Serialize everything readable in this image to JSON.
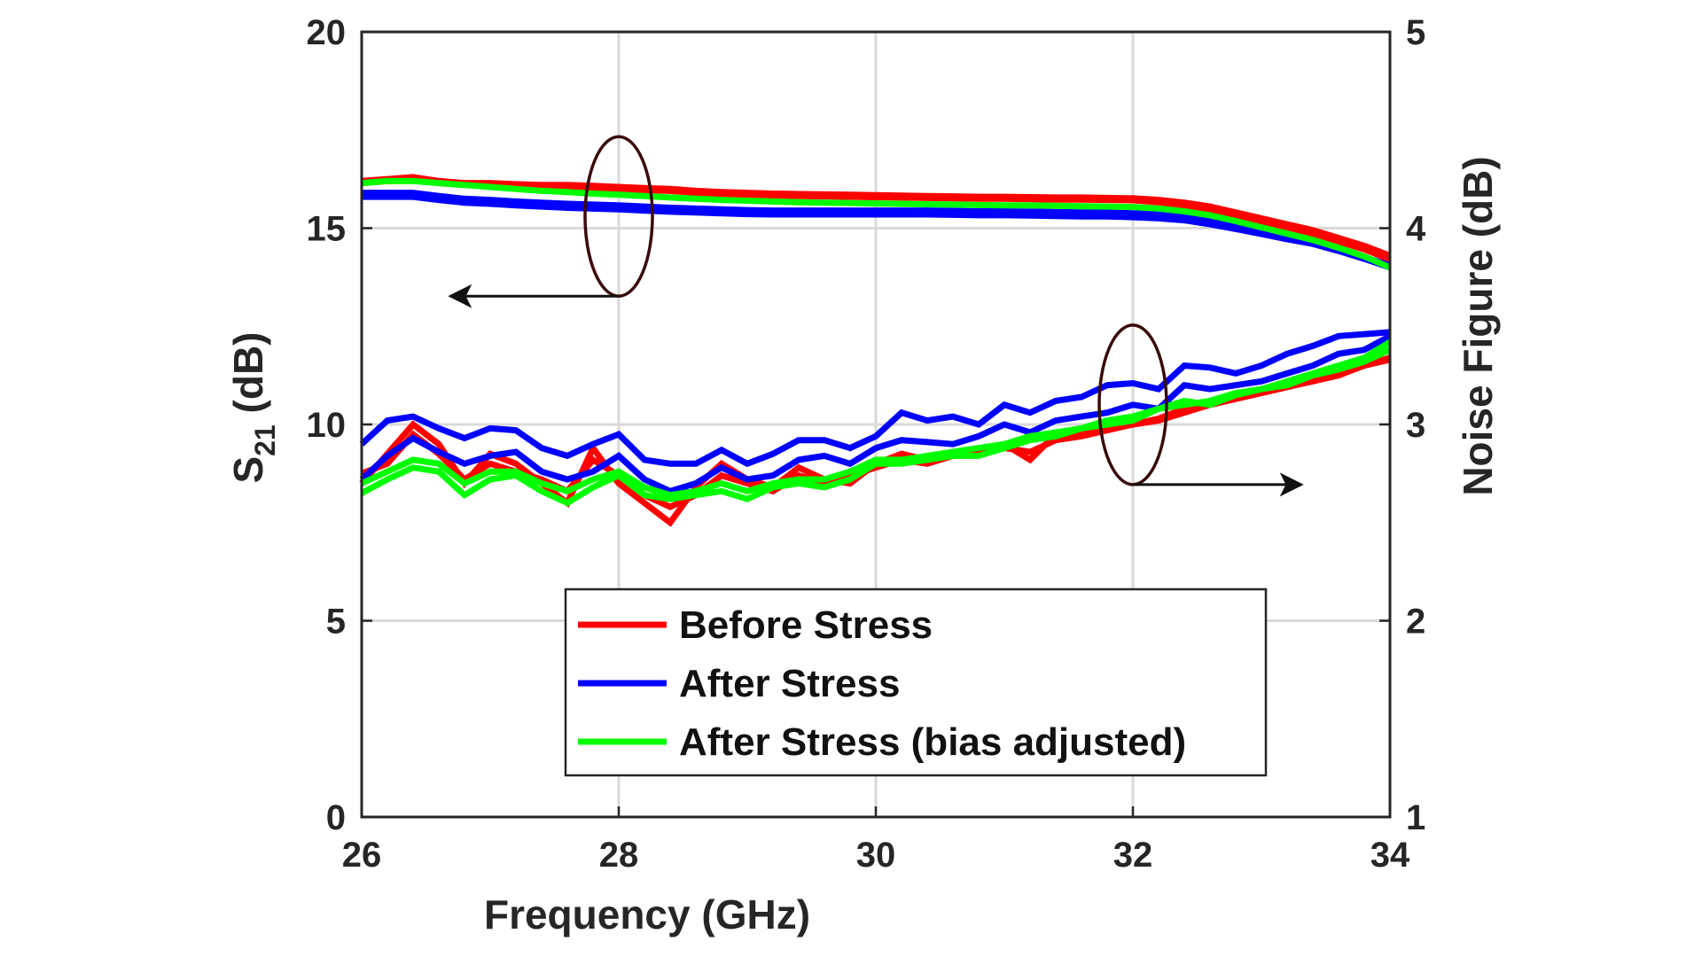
{
  "chart_data": {
    "type": "line",
    "title": "",
    "xlabel": "Frequency (GHz)",
    "ylabel_left": {
      "main": "S",
      "sub": "21",
      "unit": " (dB)"
    },
    "ylabel_right": "Noise Figure (dB)",
    "xlim": [
      26,
      34
    ],
    "ylim_left": [
      0,
      20
    ],
    "ylim_right": [
      1,
      5
    ],
    "xticks": [
      "26",
      "28",
      "30",
      "32",
      "34"
    ],
    "yticks_left": [
      "0",
      "5",
      "10",
      "15",
      "20"
    ],
    "yticks_right": [
      "1",
      "2",
      "3",
      "4",
      "5"
    ],
    "grid": true,
    "legend_position": "bottom-center",
    "colors": {
      "before": "#ff0000",
      "after": "#0000ff",
      "adjusted": "#00ff00",
      "axis": "#262626",
      "grid": "#d9d9d9",
      "ellipse": "#3a0a0a"
    },
    "x": [
      26.0,
      26.2,
      26.4,
      26.6,
      26.8,
      27.0,
      27.2,
      27.4,
      27.6,
      27.8,
      28.0,
      28.2,
      28.4,
      28.6,
      28.8,
      29.0,
      29.2,
      29.4,
      29.6,
      29.8,
      30.0,
      30.2,
      30.4,
      30.6,
      30.8,
      31.0,
      31.2,
      31.4,
      31.6,
      31.8,
      32.0,
      32.2,
      32.4,
      32.6,
      32.8,
      33.0,
      33.2,
      33.4,
      33.6,
      33.8,
      34.0
    ],
    "series": [
      {
        "name": "Before Stress",
        "axis": "left",
        "group": "S21",
        "color": "#ff0000",
        "values": [
          16.2,
          16.25,
          16.3,
          16.2,
          16.15,
          16.15,
          16.12,
          16.1,
          16.1,
          16.08,
          16.05,
          16.02,
          16.0,
          15.95,
          15.92,
          15.9,
          15.88,
          15.87,
          15.86,
          15.85,
          15.84,
          15.83,
          15.82,
          15.81,
          15.8,
          15.8,
          15.79,
          15.78,
          15.78,
          15.77,
          15.76,
          15.72,
          15.65,
          15.55,
          15.4,
          15.25,
          15.1,
          14.95,
          14.75,
          14.55,
          14.3
        ]
      },
      {
        "name": "Before Stress",
        "axis": "left",
        "group": "S21",
        "color": "#ff0000",
        "values": [
          16.15,
          16.2,
          16.22,
          16.15,
          16.1,
          16.1,
          16.07,
          16.05,
          16.05,
          16.02,
          16.0,
          15.97,
          15.95,
          15.9,
          15.87,
          15.85,
          15.83,
          15.82,
          15.81,
          15.8,
          15.79,
          15.78,
          15.77,
          15.76,
          15.75,
          15.75,
          15.74,
          15.73,
          15.73,
          15.72,
          15.71,
          15.66,
          15.58,
          15.48,
          15.33,
          15.17,
          15.02,
          14.86,
          14.66,
          14.46,
          14.2
        ]
      },
      {
        "name": "After Stress",
        "axis": "left",
        "group": "S21",
        "color": "#0000ff",
        "values": [
          15.8,
          15.8,
          15.8,
          15.72,
          15.65,
          15.62,
          15.58,
          15.55,
          15.52,
          15.5,
          15.48,
          15.45,
          15.42,
          15.4,
          15.38,
          15.36,
          15.35,
          15.35,
          15.35,
          15.35,
          15.35,
          15.35,
          15.35,
          15.34,
          15.33,
          15.33,
          15.32,
          15.31,
          15.3,
          15.3,
          15.28,
          15.25,
          15.2,
          15.1,
          14.98,
          14.85,
          14.72,
          14.6,
          14.42,
          14.22,
          14.0
        ]
      },
      {
        "name": "After Stress",
        "axis": "left",
        "group": "S21",
        "color": "#0000ff",
        "values": [
          15.9,
          15.9,
          15.9,
          15.82,
          15.75,
          15.72,
          15.68,
          15.65,
          15.62,
          15.6,
          15.58,
          15.55,
          15.52,
          15.5,
          15.48,
          15.46,
          15.45,
          15.45,
          15.45,
          15.45,
          15.45,
          15.45,
          15.45,
          15.44,
          15.43,
          15.43,
          15.42,
          15.41,
          15.4,
          15.4,
          15.38,
          15.35,
          15.28,
          15.17,
          15.04,
          14.9,
          14.77,
          14.64,
          14.46,
          14.26,
          14.05
        ]
      },
      {
        "name": "After Stress (bias adjusted)",
        "axis": "left",
        "group": "S21",
        "color": "#00ff00",
        "values": [
          16.15,
          16.2,
          16.2,
          16.15,
          16.1,
          16.05,
          16.0,
          15.95,
          15.92,
          15.88,
          15.85,
          15.82,
          15.78,
          15.75,
          15.72,
          15.7,
          15.68,
          15.66,
          15.65,
          15.64,
          15.63,
          15.62,
          15.61,
          15.6,
          15.59,
          15.58,
          15.58,
          15.57,
          15.56,
          15.55,
          15.54,
          15.5,
          15.43,
          15.33,
          15.18,
          15.02,
          14.86,
          14.7,
          14.5,
          14.28,
          14.0
        ]
      },
      {
        "name": "Before Stress",
        "axis": "right",
        "group": "NF",
        "color": "#ff0000",
        "values": [
          2.7,
          2.85,
          3.0,
          2.9,
          2.7,
          2.85,
          2.8,
          2.7,
          2.6,
          2.88,
          2.7,
          2.6,
          2.5,
          2.68,
          2.8,
          2.72,
          2.68,
          2.78,
          2.72,
          2.7,
          2.8,
          2.85,
          2.82,
          2.85,
          2.85,
          2.9,
          2.82,
          2.95,
          2.95,
          2.98,
          3.0,
          3.03,
          3.08,
          3.12,
          3.15,
          3.18,
          3.2,
          3.22,
          3.25,
          3.3,
          3.33
        ]
      },
      {
        "name": "Before Stress",
        "axis": "right",
        "group": "NF",
        "color": "#ff0000",
        "values": [
          2.75,
          2.8,
          2.95,
          2.85,
          2.72,
          2.8,
          2.76,
          2.72,
          2.66,
          2.82,
          2.74,
          2.64,
          2.58,
          2.64,
          2.74,
          2.7,
          2.66,
          2.74,
          2.7,
          2.74,
          2.78,
          2.82,
          2.8,
          2.84,
          2.86,
          2.88,
          2.86,
          2.92,
          2.94,
          2.97,
          3.0,
          3.02,
          3.06,
          3.1,
          3.13,
          3.16,
          3.19,
          3.22,
          3.26,
          3.3,
          3.34
        ]
      },
      {
        "name": "After Stress",
        "axis": "right",
        "group": "NF",
        "color": "#0000ff",
        "values": [
          2.9,
          3.02,
          3.04,
          2.98,
          2.93,
          2.98,
          2.97,
          2.88,
          2.84,
          2.9,
          2.95,
          2.82,
          2.8,
          2.8,
          2.87,
          2.8,
          2.85,
          2.92,
          2.92,
          2.88,
          2.94,
          3.06,
          3.02,
          3.04,
          3.0,
          3.1,
          3.06,
          3.12,
          3.14,
          3.2,
          3.21,
          3.18,
          3.3,
          3.29,
          3.26,
          3.3,
          3.36,
          3.4,
          3.45,
          3.46,
          3.47
        ]
      },
      {
        "name": "After Stress",
        "axis": "right",
        "group": "NF",
        "color": "#0000ff",
        "values": [
          2.72,
          2.84,
          2.93,
          2.86,
          2.8,
          2.84,
          2.86,
          2.76,
          2.72,
          2.76,
          2.84,
          2.72,
          2.66,
          2.7,
          2.78,
          2.72,
          2.74,
          2.82,
          2.84,
          2.8,
          2.88,
          2.92,
          2.91,
          2.9,
          2.94,
          3.0,
          2.96,
          3.02,
          3.04,
          3.06,
          3.1,
          3.08,
          3.2,
          3.18,
          3.2,
          3.22,
          3.26,
          3.3,
          3.36,
          3.38,
          3.45
        ]
      },
      {
        "name": "After Stress (bias adjusted)",
        "axis": "right",
        "group": "NF",
        "color": "#00ff00",
        "values": [
          2.65,
          2.72,
          2.78,
          2.76,
          2.64,
          2.72,
          2.74,
          2.66,
          2.6,
          2.68,
          2.74,
          2.64,
          2.62,
          2.64,
          2.66,
          2.62,
          2.68,
          2.7,
          2.68,
          2.72,
          2.8,
          2.8,
          2.82,
          2.84,
          2.84,
          2.88,
          2.92,
          2.94,
          2.98,
          3.0,
          3.02,
          3.08,
          3.12,
          3.1,
          3.15,
          3.18,
          3.2,
          3.25,
          3.28,
          3.32,
          3.38
        ]
      },
      {
        "name": "After Stress (bias adjusted)",
        "axis": "right",
        "group": "NF",
        "color": "#00ff00",
        "values": [
          2.7,
          2.76,
          2.82,
          2.8,
          2.7,
          2.76,
          2.76,
          2.7,
          2.66,
          2.72,
          2.76,
          2.68,
          2.64,
          2.66,
          2.7,
          2.66,
          2.7,
          2.72,
          2.72,
          2.76,
          2.82,
          2.82,
          2.84,
          2.86,
          2.88,
          2.9,
          2.94,
          2.96,
          2.98,
          3.02,
          3.04,
          3.08,
          3.1,
          3.12,
          3.16,
          3.18,
          3.22,
          3.26,
          3.3,
          3.34,
          3.42
        ]
      }
    ],
    "legend": [
      {
        "label": "Before Stress",
        "color": "#ff0000"
      },
      {
        "label": "After Stress",
        "color": "#0000ff"
      },
      {
        "label": "After Stress (bias adjusted)",
        "color": "#00ff00"
      }
    ],
    "annotations": [
      {
        "type": "ellipse",
        "group": "S21",
        "center_x": 28.0,
        "center_y_left": 15.3,
        "arrow": "left"
      },
      {
        "type": "ellipse",
        "group": "NF",
        "center_x": 32.0,
        "center_y_right": 3.1,
        "arrow": "right"
      }
    ]
  }
}
